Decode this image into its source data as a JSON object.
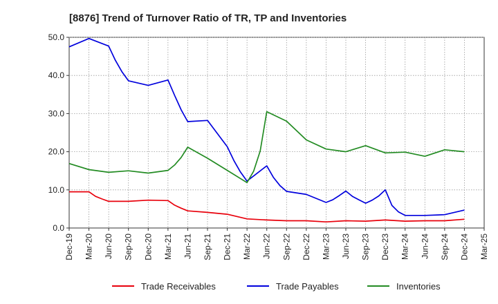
{
  "chart_data": {
    "type": "line",
    "title": "[8876]  Trend of Turnover Ratio of TR, TP and Inventories",
    "xlabel": "",
    "ylabel": "",
    "ylim": [
      0,
      50
    ],
    "y_ticks": [
      "0.0",
      "10.0",
      "20.0",
      "30.0",
      "40.0",
      "50.0"
    ],
    "x_ticks": [
      "Dec-19",
      "Mar-20",
      "Jun-20",
      "Sep-20",
      "Dec-20",
      "Mar-21",
      "Jun-21",
      "Sep-21",
      "Dec-21",
      "Mar-22",
      "Jun-22",
      "Sep-22",
      "Dec-22",
      "Mar-23",
      "Jun-23",
      "Sep-23",
      "Dec-23",
      "Mar-24",
      "Jun-24",
      "Sep-24",
      "Dec-24",
      "Mar-25"
    ],
    "grid": true,
    "legend_position": "bottom",
    "series": [
      {
        "name": "Trade Receivables",
        "color": "#e8000b",
        "points": [
          [
            "Dec-19",
            9.5
          ],
          [
            "Mar-20",
            9.5
          ],
          [
            "Apr-20",
            8.3
          ],
          [
            "May-20",
            7.6
          ],
          [
            "Jun-20",
            7.0
          ],
          [
            "Sep-20",
            7.0
          ],
          [
            "Dec-20",
            7.3
          ],
          [
            "Mar-21",
            7.2
          ],
          [
            "Apr-21",
            6.0
          ],
          [
            "May-21",
            5.2
          ],
          [
            "Jun-21",
            4.5
          ],
          [
            "Sep-21",
            4.1
          ],
          [
            "Dec-21",
            3.6
          ],
          [
            "Mar-22",
            2.4
          ],
          [
            "Jun-22",
            2.1
          ],
          [
            "Sep-22",
            1.9
          ],
          [
            "Dec-22",
            1.9
          ],
          [
            "Mar-23",
            1.6
          ],
          [
            "Jun-23",
            1.9
          ],
          [
            "Sep-23",
            1.8
          ],
          [
            "Dec-23",
            2.1
          ],
          [
            "Mar-24",
            1.8
          ],
          [
            "Jun-24",
            1.9
          ],
          [
            "Sep-24",
            1.9
          ],
          [
            "Dec-24",
            2.3
          ]
        ]
      },
      {
        "name": "Trade Payables",
        "color": "#0000dd",
        "points": [
          [
            "Dec-19",
            47.5
          ],
          [
            "Mar-20",
            49.7
          ],
          [
            "Jun-20",
            47.7
          ],
          [
            "Jul-20",
            44.0
          ],
          [
            "Aug-20",
            41.0
          ],
          [
            "Sep-20",
            38.6
          ],
          [
            "Dec-20",
            37.4
          ],
          [
            "Mar-21",
            38.8
          ],
          [
            "Apr-21",
            34.8
          ],
          [
            "May-21",
            31.0
          ],
          [
            "Jun-21",
            27.9
          ],
          [
            "Sep-21",
            28.2
          ],
          [
            "Dec-21",
            21.3
          ],
          [
            "Jan-22",
            17.7
          ],
          [
            "Feb-22",
            14.7
          ],
          [
            "Mar-22",
            12.3
          ],
          [
            "Jun-22",
            16.3
          ],
          [
            "Jul-22",
            13.3
          ],
          [
            "Aug-22",
            11.1
          ],
          [
            "Sep-22",
            9.6
          ],
          [
            "Dec-22",
            8.8
          ],
          [
            "Mar-23",
            6.7
          ],
          [
            "Apr-23",
            7.4
          ],
          [
            "May-23",
            8.5
          ],
          [
            "Jun-23",
            9.7
          ],
          [
            "Jul-23",
            8.3
          ],
          [
            "Aug-23",
            7.4
          ],
          [
            "Sep-23",
            6.5
          ],
          [
            "Oct-23",
            7.3
          ],
          [
            "Nov-23",
            8.4
          ],
          [
            "Dec-23",
            10.0
          ],
          [
            "Jan-24",
            5.9
          ],
          [
            "Feb-24",
            4.2
          ],
          [
            "Mar-24",
            3.3
          ],
          [
            "Jun-24",
            3.3
          ],
          [
            "Sep-24",
            3.5
          ],
          [
            "Dec-24",
            4.7
          ]
        ]
      },
      {
        "name": "Inventories",
        "color": "#228b22",
        "points": [
          [
            "Dec-19",
            16.9
          ],
          [
            "Mar-20",
            15.3
          ],
          [
            "Jun-20",
            14.6
          ],
          [
            "Sep-20",
            15.0
          ],
          [
            "Dec-20",
            14.4
          ],
          [
            "Mar-21",
            15.1
          ],
          [
            "Apr-21",
            16.5
          ],
          [
            "May-21",
            18.5
          ],
          [
            "Jun-21",
            21.2
          ],
          [
            "Sep-21",
            18.3
          ],
          [
            "Dec-21",
            15.1
          ],
          [
            "Mar-22",
            11.9
          ],
          [
            "Apr-22",
            14.9
          ],
          [
            "May-22",
            20.2
          ],
          [
            "Jun-22",
            30.5
          ],
          [
            "Sep-22",
            28.0
          ],
          [
            "Dec-22",
            23.1
          ],
          [
            "Mar-23",
            20.7
          ],
          [
            "Jun-23",
            20.0
          ],
          [
            "Sep-23",
            21.6
          ],
          [
            "Dec-23",
            19.7
          ],
          [
            "Mar-24",
            19.9
          ],
          [
            "Jun-24",
            18.8
          ],
          [
            "Sep-24",
            20.5
          ],
          [
            "Dec-24",
            20.0
          ]
        ]
      }
    ]
  }
}
